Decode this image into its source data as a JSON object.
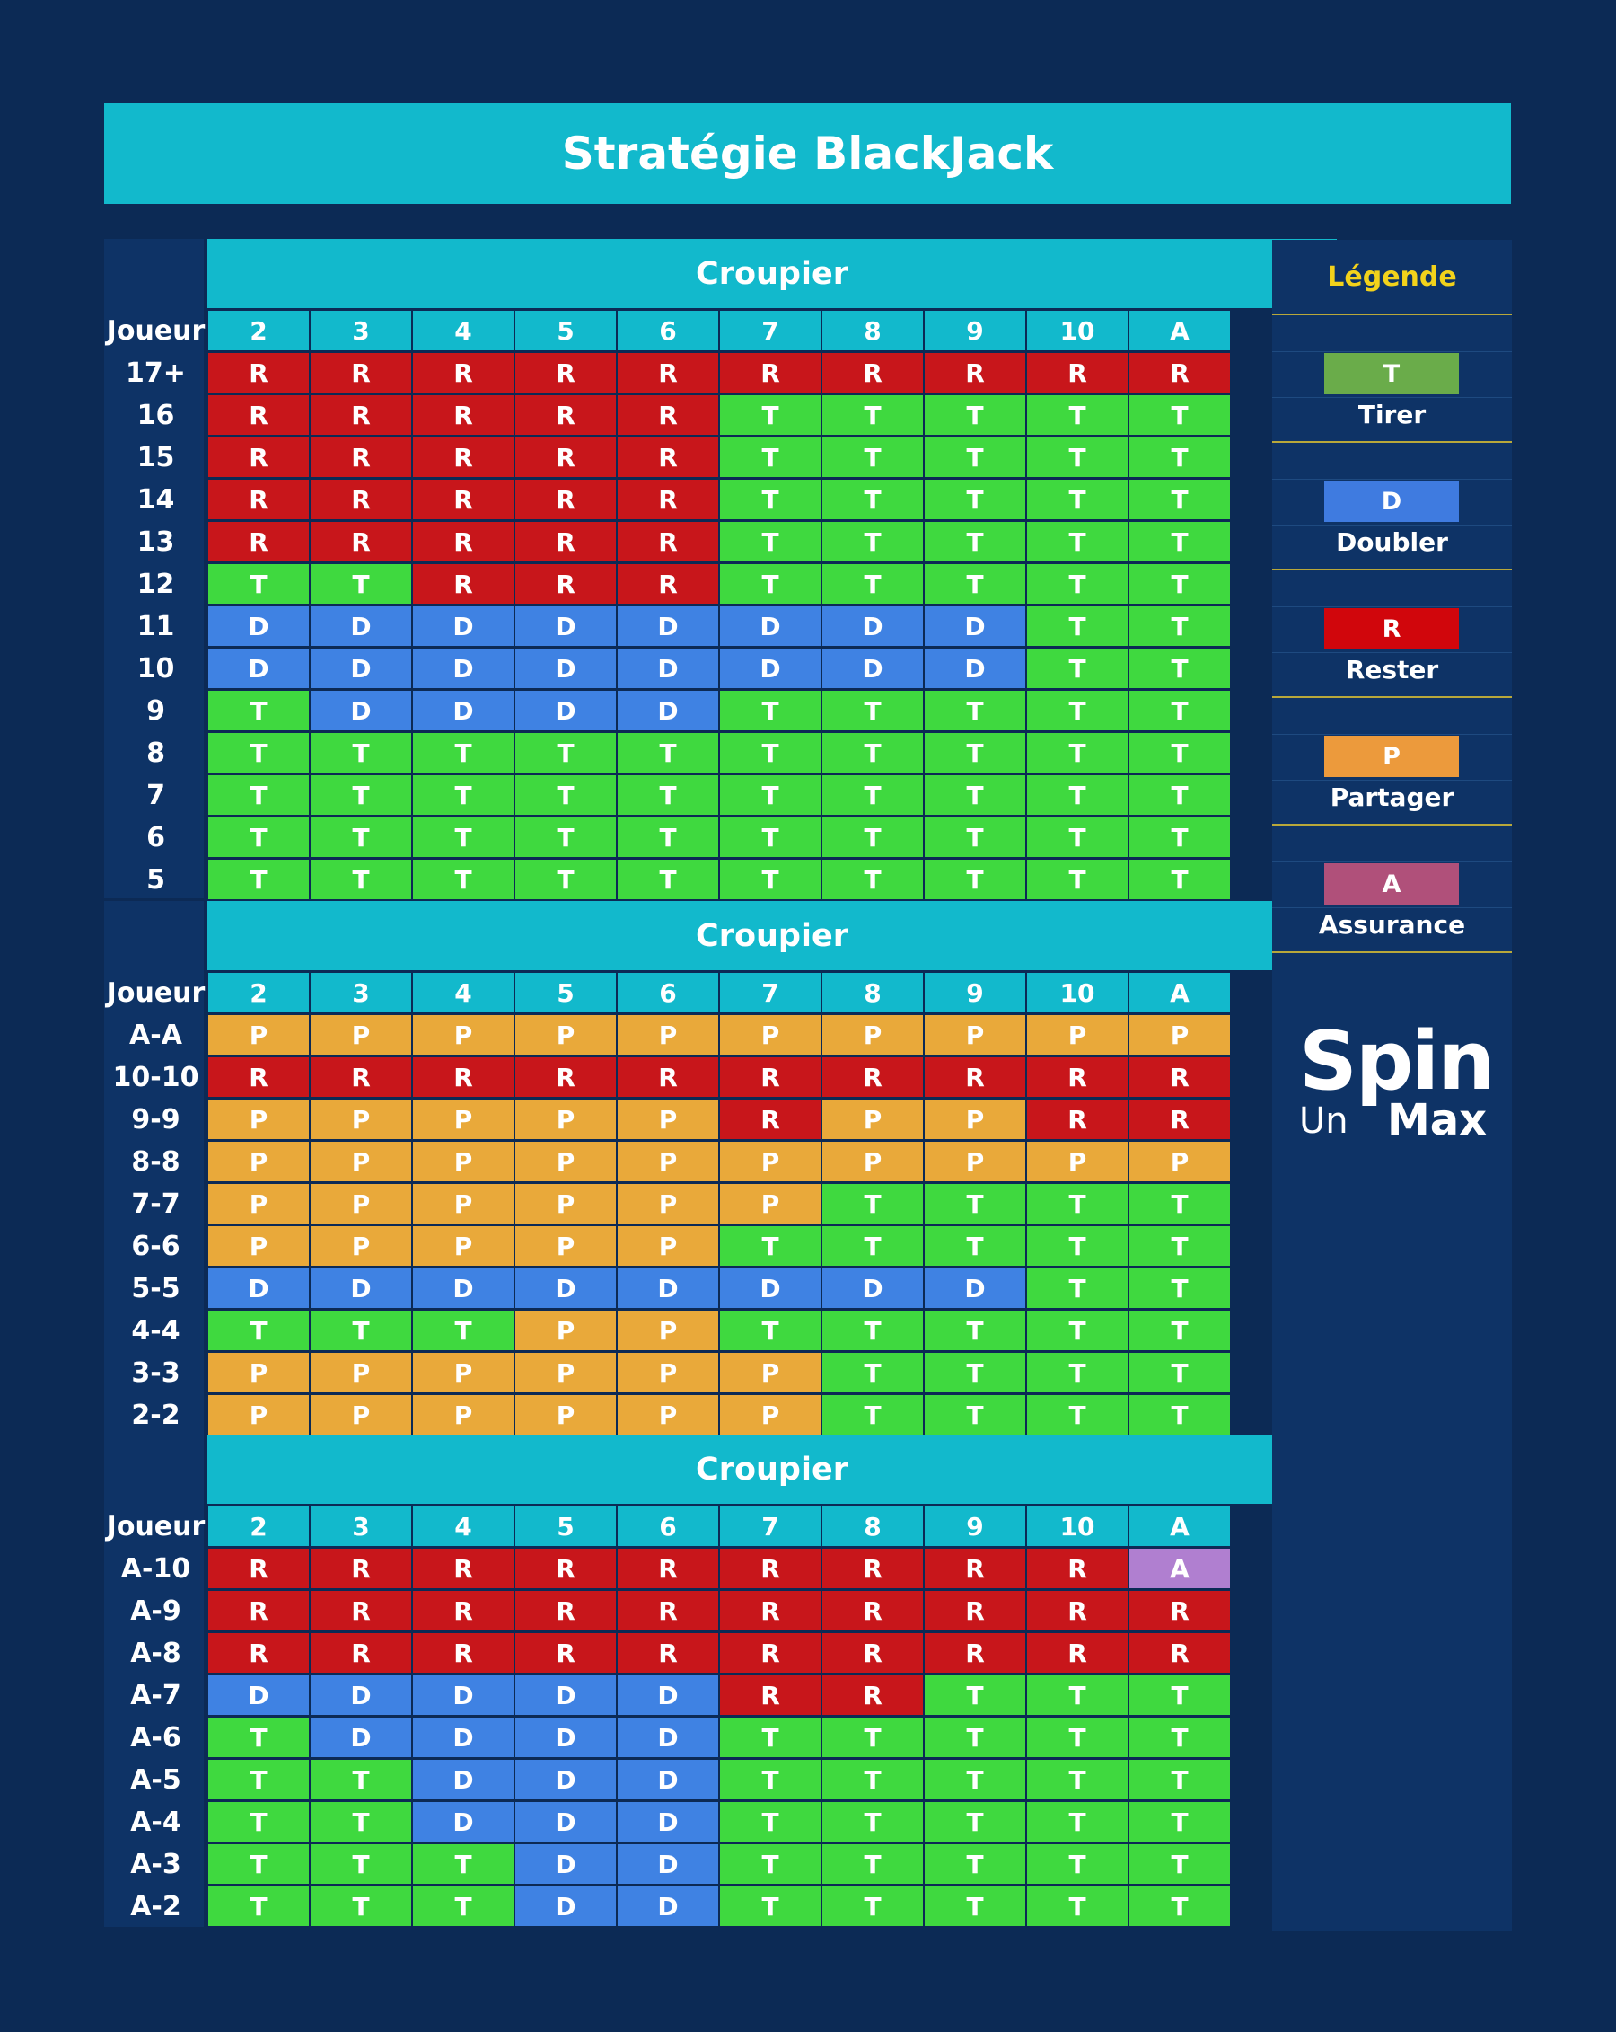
{
  "title": "Stratégie BlackJack",
  "colors": {
    "T": "#3fd93f",
    "R": "#c8161b",
    "D": "#3f82e3",
    "P": "#e9a93a",
    "A": "#b07fd0",
    "accent": "#12b9cc",
    "background": "#0c2a55",
    "legend_title": "#f2d21b"
  },
  "tables": [
    {
      "header": "Croupier",
      "corner": "Joueur",
      "dealer": [
        "2",
        "3",
        "4",
        "5",
        "6",
        "7",
        "8",
        "9",
        "10",
        "A"
      ],
      "rows": [
        {
          "label": "17+",
          "cells": [
            "R",
            "R",
            "R",
            "R",
            "R",
            "R",
            "R",
            "R",
            "R",
            "R"
          ]
        },
        {
          "label": "16",
          "cells": [
            "R",
            "R",
            "R",
            "R",
            "R",
            "T",
            "T",
            "T",
            "T",
            "T"
          ]
        },
        {
          "label": "15",
          "cells": [
            "R",
            "R",
            "R",
            "R",
            "R",
            "T",
            "T",
            "T",
            "T",
            "T"
          ]
        },
        {
          "label": "14",
          "cells": [
            "R",
            "R",
            "R",
            "R",
            "R",
            "T",
            "T",
            "T",
            "T",
            "T"
          ]
        },
        {
          "label": "13",
          "cells": [
            "R",
            "R",
            "R",
            "R",
            "R",
            "T",
            "T",
            "T",
            "T",
            "T"
          ]
        },
        {
          "label": "12",
          "cells": [
            "T",
            "T",
            "R",
            "R",
            "R",
            "T",
            "T",
            "T",
            "T",
            "T"
          ]
        },
        {
          "label": "11",
          "cells": [
            "D",
            "D",
            "D",
            "D",
            "D",
            "D",
            "D",
            "D",
            "T",
            "T"
          ]
        },
        {
          "label": "10",
          "cells": [
            "D",
            "D",
            "D",
            "D",
            "D",
            "D",
            "D",
            "D",
            "T",
            "T"
          ]
        },
        {
          "label": "9",
          "cells": [
            "T",
            "D",
            "D",
            "D",
            "D",
            "T",
            "T",
            "T",
            "T",
            "T"
          ]
        },
        {
          "label": "8",
          "cells": [
            "T",
            "T",
            "T",
            "T",
            "T",
            "T",
            "T",
            "T",
            "T",
            "T"
          ]
        },
        {
          "label": "7",
          "cells": [
            "T",
            "T",
            "T",
            "T",
            "T",
            "T",
            "T",
            "T",
            "T",
            "T"
          ]
        },
        {
          "label": "6",
          "cells": [
            "T",
            "T",
            "T",
            "T",
            "T",
            "T",
            "T",
            "T",
            "T",
            "T"
          ]
        },
        {
          "label": "5",
          "cells": [
            "T",
            "T",
            "T",
            "T",
            "T",
            "T",
            "T",
            "T",
            "T",
            "T"
          ]
        }
      ]
    },
    {
      "header": "Croupier",
      "corner": "Joueur",
      "dealer": [
        "2",
        "3",
        "4",
        "5",
        "6",
        "7",
        "8",
        "9",
        "10",
        "A"
      ],
      "rows": [
        {
          "label": "A-A",
          "cells": [
            "P",
            "P",
            "P",
            "P",
            "P",
            "P",
            "P",
            "P",
            "P",
            "P"
          ]
        },
        {
          "label": "10-10",
          "cells": [
            "R",
            "R",
            "R",
            "R",
            "R",
            "R",
            "R",
            "R",
            "R",
            "R"
          ]
        },
        {
          "label": "9-9",
          "cells": [
            "P",
            "P",
            "P",
            "P",
            "P",
            "R",
            "P",
            "P",
            "R",
            "R"
          ]
        },
        {
          "label": "8-8",
          "cells": [
            "P",
            "P",
            "P",
            "P",
            "P",
            "P",
            "P",
            "P",
            "P",
            "P"
          ]
        },
        {
          "label": "7-7",
          "cells": [
            "P",
            "P",
            "P",
            "P",
            "P",
            "P",
            "T",
            "T",
            "T",
            "T"
          ]
        },
        {
          "label": "6-6",
          "cells": [
            "P",
            "P",
            "P",
            "P",
            "P",
            "T",
            "T",
            "T",
            "T",
            "T"
          ]
        },
        {
          "label": "5-5",
          "cells": [
            "D",
            "D",
            "D",
            "D",
            "D",
            "D",
            "D",
            "D",
            "T",
            "T"
          ]
        },
        {
          "label": "4-4",
          "cells": [
            "T",
            "T",
            "T",
            "P",
            "P",
            "T",
            "T",
            "T",
            "T",
            "T"
          ]
        },
        {
          "label": "3-3",
          "cells": [
            "P",
            "P",
            "P",
            "P",
            "P",
            "P",
            "T",
            "T",
            "T",
            "T"
          ]
        },
        {
          "label": "2-2",
          "cells": [
            "P",
            "P",
            "P",
            "P",
            "P",
            "P",
            "T",
            "T",
            "T",
            "T"
          ]
        }
      ]
    },
    {
      "header": "Croupier",
      "corner": "Joueur",
      "dealer": [
        "2",
        "3",
        "4",
        "5",
        "6",
        "7",
        "8",
        "9",
        "10",
        "A"
      ],
      "rows": [
        {
          "label": "A-10",
          "cells": [
            "R",
            "R",
            "R",
            "R",
            "R",
            "R",
            "R",
            "R",
            "R",
            "A"
          ]
        },
        {
          "label": "A-9",
          "cells": [
            "R",
            "R",
            "R",
            "R",
            "R",
            "R",
            "R",
            "R",
            "R",
            "R"
          ]
        },
        {
          "label": "A-8",
          "cells": [
            "R",
            "R",
            "R",
            "R",
            "R",
            "R",
            "R",
            "R",
            "R",
            "R"
          ]
        },
        {
          "label": "A-7",
          "cells": [
            "D",
            "D",
            "D",
            "D",
            "D",
            "R",
            "R",
            "T",
            "T",
            "T"
          ]
        },
        {
          "label": "A-6",
          "cells": [
            "T",
            "D",
            "D",
            "D",
            "D",
            "T",
            "T",
            "T",
            "T",
            "T"
          ]
        },
        {
          "label": "A-5",
          "cells": [
            "T",
            "T",
            "D",
            "D",
            "D",
            "T",
            "T",
            "T",
            "T",
            "T"
          ]
        },
        {
          "label": "A-4",
          "cells": [
            "T",
            "T",
            "D",
            "D",
            "D",
            "T",
            "T",
            "T",
            "T",
            "T"
          ]
        },
        {
          "label": "A-3",
          "cells": [
            "T",
            "T",
            "T",
            "D",
            "D",
            "T",
            "T",
            "T",
            "T",
            "T"
          ]
        },
        {
          "label": "A-2",
          "cells": [
            "T",
            "T",
            "T",
            "D",
            "D",
            "T",
            "T",
            "T",
            "T",
            "T"
          ]
        }
      ]
    }
  ],
  "legend": {
    "title": "Légende",
    "items": [
      {
        "code": "T",
        "name": "Tirer",
        "color": "#6aac4a"
      },
      {
        "code": "D",
        "name": "Doubler",
        "color": "#3f7be0"
      },
      {
        "code": "R",
        "name": "Rester",
        "color": "#d1060c"
      },
      {
        "code": "P",
        "name": "Partager",
        "color": "#ec9a3c"
      },
      {
        "code": "A",
        "name": "Assurance",
        "color": "#b0507a"
      }
    ]
  },
  "logo": {
    "line1": "Spin",
    "line2a": "Un",
    "line2b": "Max"
  }
}
